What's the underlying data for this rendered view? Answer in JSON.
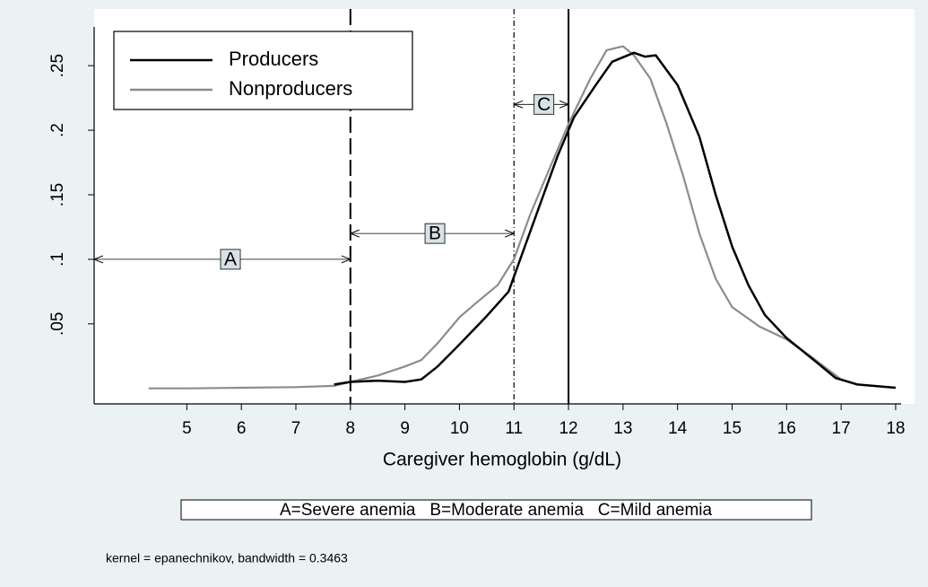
{
  "chart_data": {
    "type": "line",
    "x_label": "Caregiver hemoglobin (g/dL)",
    "note": "A=Severe anemia   B=Moderate anemia   C=Mild anemia",
    "footnote": "kernel = epanechnikov, bandwidth = 0.3463",
    "xlim": [
      3.3,
      18.1
    ],
    "ylim": [
      -0.012,
      0.28
    ],
    "xticks": [
      5,
      6,
      7,
      8,
      9,
      10,
      11,
      12,
      13,
      14,
      15,
      16,
      17,
      18
    ],
    "yticks": [
      {
        "value": 0.05,
        "label": ".05"
      },
      {
        "value": 0.1,
        "label": ".1"
      },
      {
        "value": 0.15,
        "label": ".15"
      },
      {
        "value": 0.2,
        "label": ".2"
      },
      {
        "value": 0.25,
        "label": ".25"
      }
    ],
    "grid": false,
    "legend": "upper left",
    "reference_lines": [
      {
        "x": 8,
        "style": "dashed"
      },
      {
        "x": 11,
        "style": "dashdot"
      },
      {
        "x": 12,
        "style": "solid"
      }
    ],
    "annotations": [
      {
        "text": "A",
        "x": [
          3.3,
          8
        ],
        "y": 0.1,
        "label_x": 5.8
      },
      {
        "text": "B",
        "x": [
          8,
          11
        ],
        "y": 0.12,
        "label_x": 9.55
      },
      {
        "text": "C",
        "x": [
          11,
          12
        ],
        "y": 0.22,
        "label_x": 11.55
      }
    ],
    "series": [
      {
        "name": "Producers",
        "color": "#000000",
        "x": [
          7.7,
          8,
          8.5,
          9,
          9.3,
          9.6,
          10,
          10.5,
          10.9,
          11.2,
          11.5,
          11.8,
          12.1,
          12.5,
          12.8,
          13.2,
          13.4,
          13.6,
          14,
          14.4,
          14.7,
          15,
          15.3,
          15.6,
          16,
          16.5,
          16.9,
          17.3,
          18
        ],
        "values": [
          0.003,
          0.005,
          0.006,
          0.005,
          0.007,
          0.017,
          0.034,
          0.056,
          0.075,
          0.11,
          0.145,
          0.18,
          0.21,
          0.235,
          0.253,
          0.26,
          0.257,
          0.258,
          0.235,
          0.195,
          0.15,
          0.11,
          0.08,
          0.057,
          0.039,
          0.022,
          0.008,
          0.003,
          0.0005
        ]
      },
      {
        "name": "Nonproducers",
        "color": "#8c8c8c",
        "x": [
          4.3,
          5,
          6,
          7,
          7.7,
          8,
          8.5,
          9,
          9.3,
          9.6,
          10,
          10.3,
          10.7,
          11,
          11.3,
          11.7,
          12,
          12.4,
          12.7,
          13,
          13.2,
          13.5,
          13.8,
          14.1,
          14.4,
          14.7,
          15,
          15.5,
          16,
          16.5,
          17,
          17.3
        ],
        "values": [
          0,
          0,
          0.0005,
          0.001,
          0.002,
          0.005,
          0.01,
          0.017,
          0.022,
          0.035,
          0.055,
          0.066,
          0.08,
          0.1,
          0.135,
          0.175,
          0.205,
          0.24,
          0.262,
          0.265,
          0.258,
          0.24,
          0.205,
          0.165,
          0.12,
          0.085,
          0.063,
          0.048,
          0.038,
          0.023,
          0.007,
          0.003
        ]
      }
    ]
  }
}
